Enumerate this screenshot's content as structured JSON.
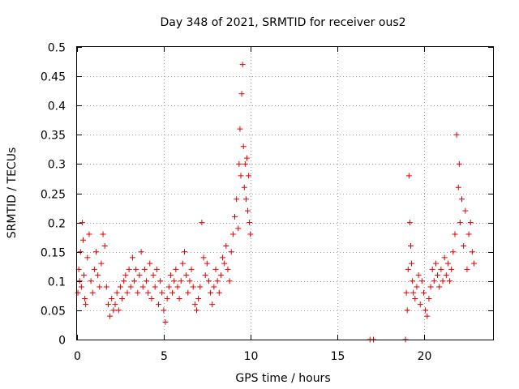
{
  "chart_data": {
    "type": "scatter",
    "title": "Day 348 of 2021, SRMTID for receiver ous2",
    "xlabel": "GPS time / hours",
    "ylabel": "SRMTID / TECUs",
    "xlim": [
      0,
      24
    ],
    "ylim": [
      0,
      0.5
    ],
    "xticks": [
      0,
      5,
      10,
      15,
      20
    ],
    "xtick_labels": [
      "0",
      "5",
      "10",
      "15",
      "20"
    ],
    "yticks": [
      0,
      0.05,
      0.1,
      0.15,
      0.2,
      0.25,
      0.3,
      0.35,
      0.4,
      0.45,
      0.5
    ],
    "ytick_labels": [
      "0",
      "0.05",
      "0.1",
      "0.15",
      "0.2",
      "0.25",
      "0.3",
      "0.35",
      "0.4",
      "0.45",
      "0.5"
    ],
    "grid": true,
    "marker": "+",
    "color": "#e00000",
    "series": [
      {
        "name": "SRMTID",
        "x": [
          0.05,
          0.1,
          0.15,
          0.2,
          0.25,
          0.3,
          0.35,
          0.4,
          0.45,
          0.5,
          0.6,
          0.7,
          0.8,
          0.9,
          1.0,
          1.1,
          1.2,
          1.3,
          1.4,
          1.5,
          1.6,
          1.7,
          1.8,
          1.9,
          2.0,
          2.1,
          2.2,
          2.3,
          2.4,
          2.5,
          2.6,
          2.7,
          2.8,
          2.9,
          3.0,
          3.1,
          3.2,
          3.3,
          3.4,
          3.5,
          3.6,
          3.7,
          3.8,
          3.9,
          4.0,
          4.1,
          4.2,
          4.3,
          4.4,
          4.5,
          4.6,
          4.7,
          4.8,
          4.9,
          5.0,
          5.1,
          5.2,
          5.3,
          5.4,
          5.5,
          5.6,
          5.7,
          5.8,
          5.9,
          6.0,
          6.1,
          6.2,
          6.3,
          6.4,
          6.5,
          6.6,
          6.7,
          6.8,
          6.9,
          7.0,
          7.1,
          7.2,
          7.3,
          7.4,
          7.5,
          7.6,
          7.7,
          7.8,
          7.9,
          8.0,
          8.1,
          8.2,
          8.3,
          8.4,
          8.5,
          8.6,
          8.7,
          8.8,
          8.9,
          9.0,
          9.1,
          9.2,
          9.3,
          9.35,
          9.4,
          9.45,
          9.5,
          9.55,
          9.6,
          9.65,
          9.7,
          9.75,
          9.8,
          9.85,
          9.9,
          9.95,
          10.0,
          16.9,
          17.1,
          18.95,
          19.0,
          19.05,
          19.1,
          19.15,
          19.2,
          19.25,
          19.3,
          19.35,
          19.4,
          19.5,
          19.6,
          19.7,
          19.8,
          19.9,
          20.0,
          20.1,
          20.2,
          20.3,
          20.4,
          20.5,
          20.6,
          20.7,
          20.8,
          20.9,
          21.0,
          21.1,
          21.2,
          21.3,
          21.4,
          21.5,
          21.6,
          21.7,
          21.8,
          21.9,
          22.0,
          22.05,
          22.1,
          22.2,
          22.3,
          22.4,
          22.5,
          22.6,
          22.7,
          22.8,
          22.9
        ],
        "y": [
          0.08,
          0.12,
          0.1,
          0.15,
          0.09,
          0.2,
          0.17,
          0.11,
          0.07,
          0.06,
          0.14,
          0.18,
          0.1,
          0.08,
          0.12,
          0.15,
          0.11,
          0.09,
          0.13,
          0.18,
          0.16,
          0.09,
          0.06,
          0.04,
          0.07,
          0.05,
          0.06,
          0.08,
          0.05,
          0.09,
          0.07,
          0.1,
          0.11,
          0.08,
          0.12,
          0.09,
          0.14,
          0.1,
          0.12,
          0.08,
          0.11,
          0.15,
          0.09,
          0.12,
          0.1,
          0.08,
          0.13,
          0.07,
          0.11,
          0.09,
          0.12,
          0.06,
          0.1,
          0.08,
          0.05,
          0.03,
          0.07,
          0.09,
          0.11,
          0.08,
          0.1,
          0.12,
          0.09,
          0.07,
          0.1,
          0.13,
          0.15,
          0.11,
          0.08,
          0.1,
          0.12,
          0.09,
          0.06,
          0.05,
          0.07,
          0.09,
          0.2,
          0.14,
          0.11,
          0.13,
          0.1,
          0.08,
          0.06,
          0.09,
          0.12,
          0.1,
          0.08,
          0.11,
          0.14,
          0.13,
          0.16,
          0.12,
          0.1,
          0.15,
          0.18,
          0.21,
          0.24,
          0.19,
          0.3,
          0.36,
          0.28,
          0.42,
          0.47,
          0.33,
          0.26,
          0.3,
          0.24,
          0.31,
          0.22,
          0.28,
          0.2,
          0.18,
          0.0,
          0.0,
          0.0,
          0.08,
          0.05,
          0.12,
          0.28,
          0.2,
          0.16,
          0.13,
          0.1,
          0.08,
          0.07,
          0.09,
          0.11,
          0.06,
          0.1,
          0.08,
          0.05,
          0.04,
          0.07,
          0.09,
          0.12,
          0.1,
          0.13,
          0.11,
          0.09,
          0.12,
          0.1,
          0.14,
          0.11,
          0.13,
          0.1,
          0.12,
          0.15,
          0.18,
          0.35,
          0.26,
          0.3,
          0.2,
          0.24,
          0.16,
          0.22,
          0.12,
          0.18,
          0.2,
          0.15,
          0.13
        ]
      }
    ]
  }
}
